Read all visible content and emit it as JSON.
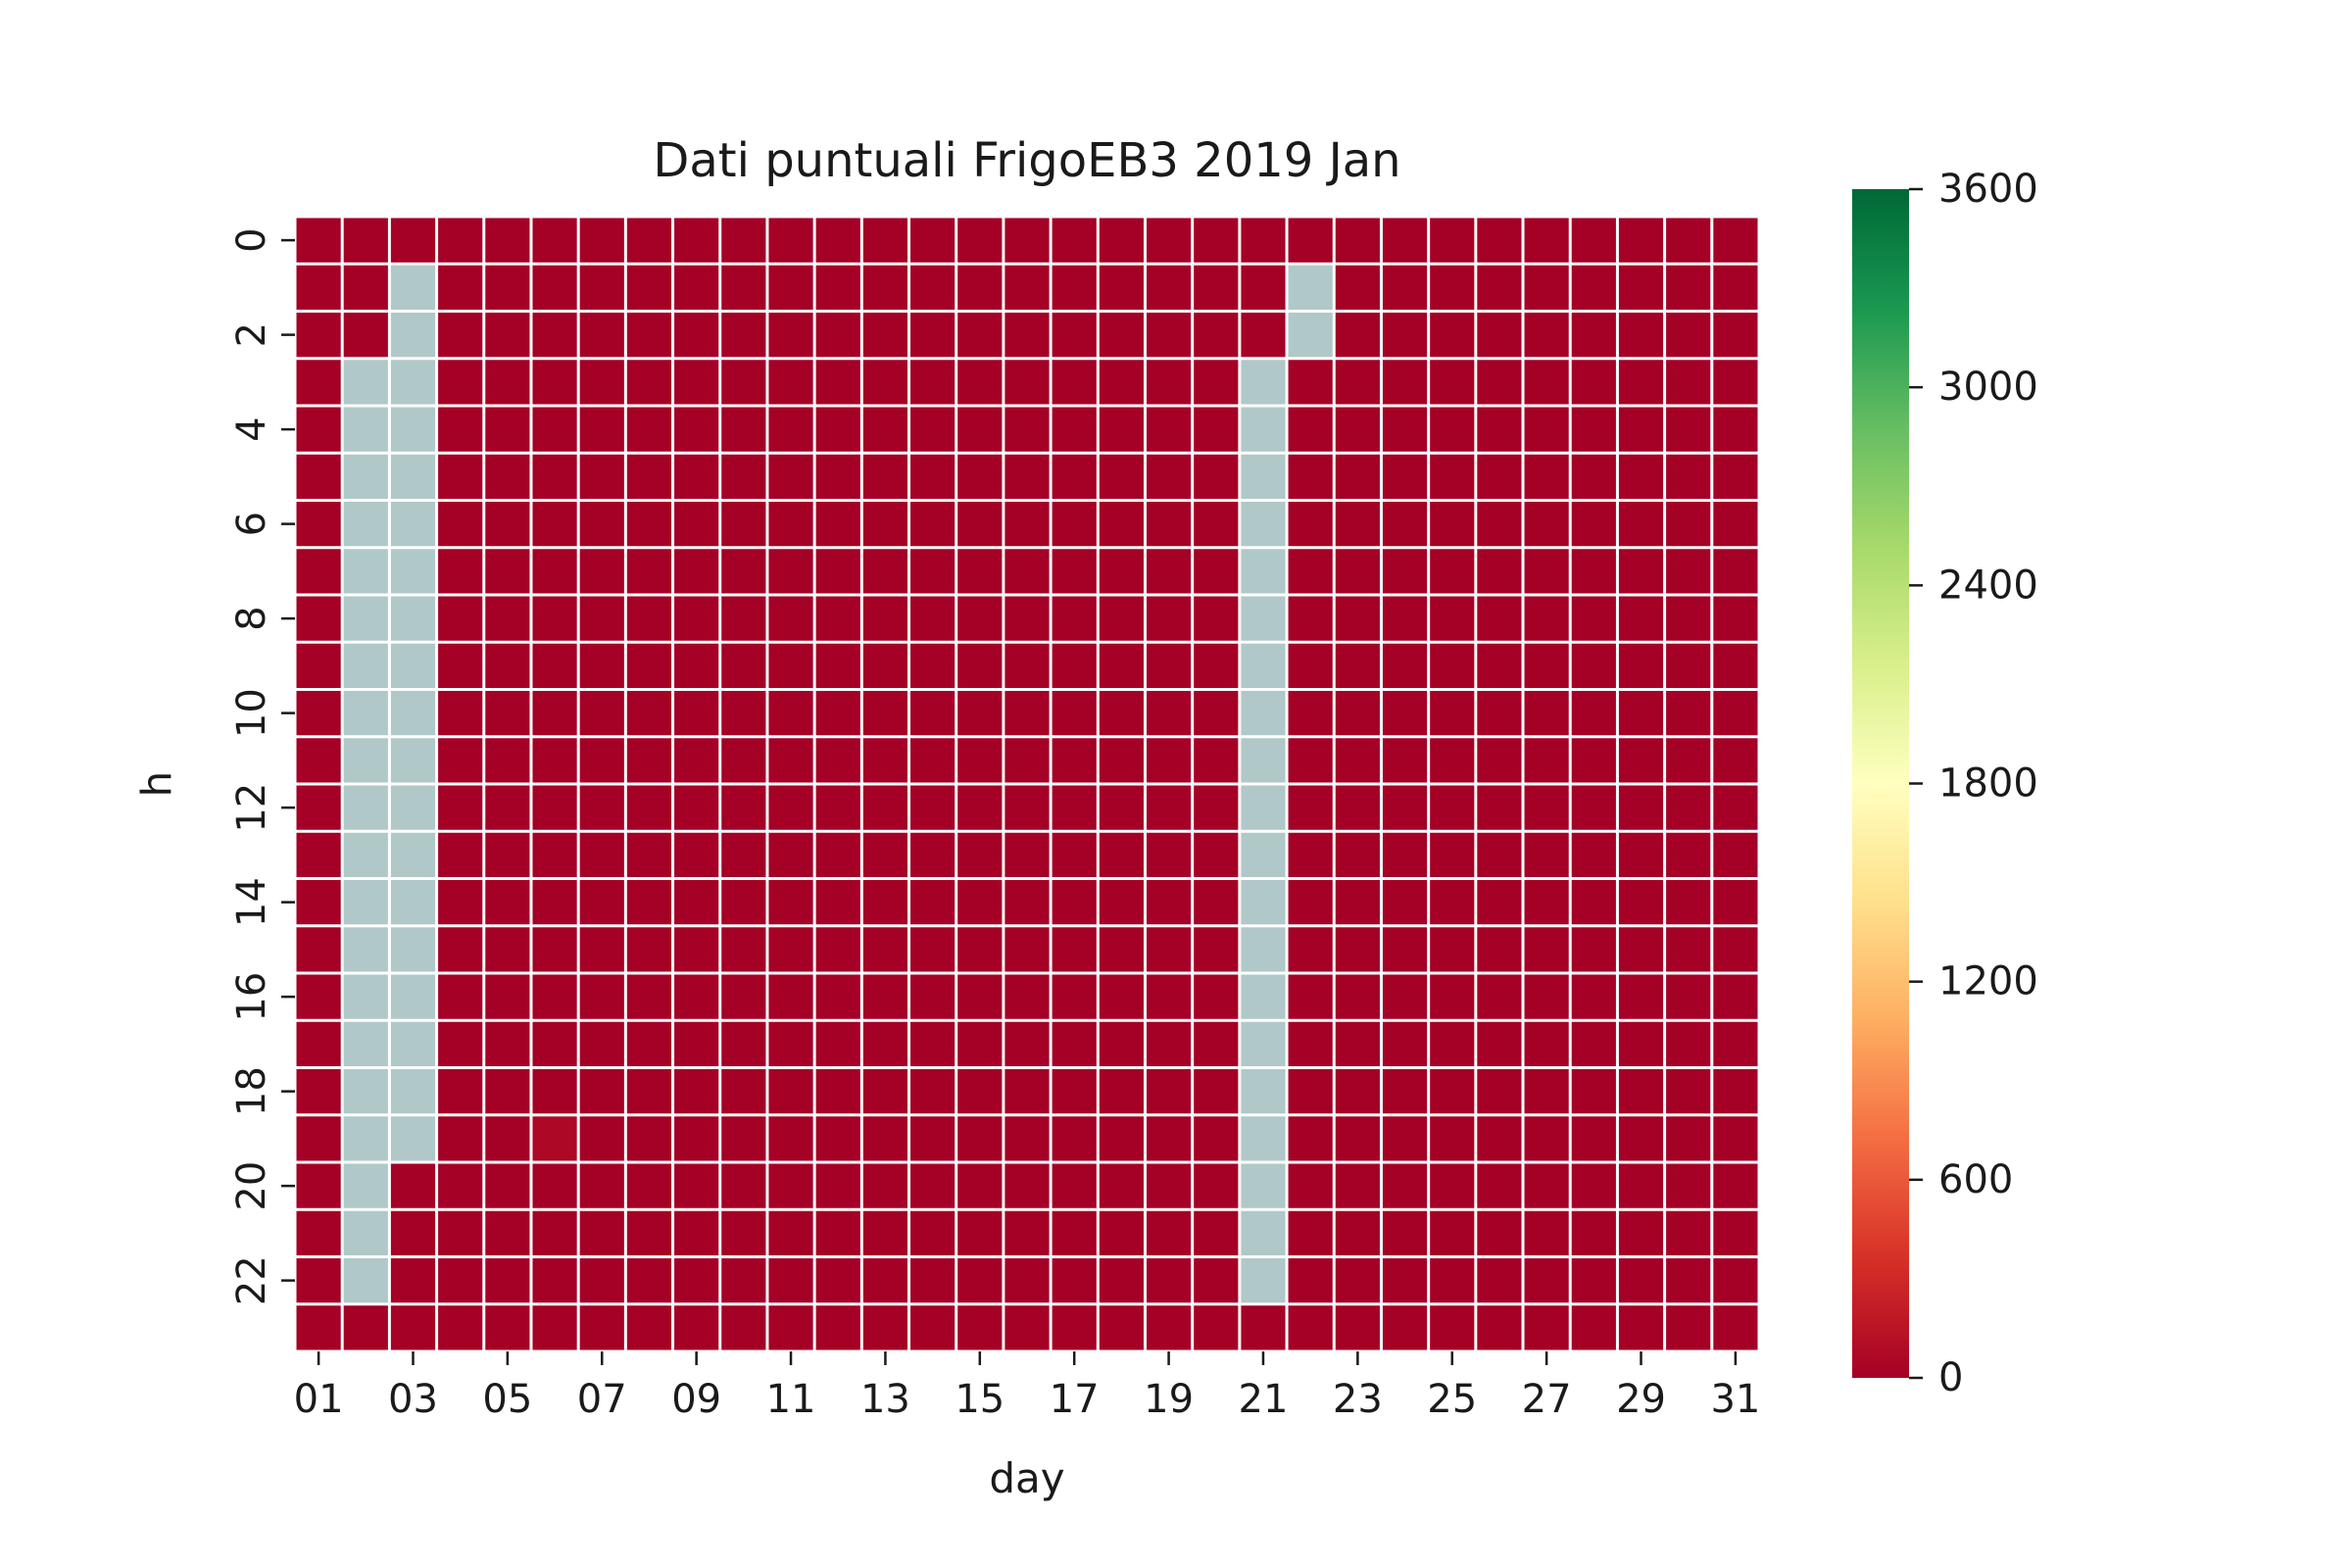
{
  "chart_data": {
    "type": "heatmap",
    "title": "Dati puntuali FrigoEB3 2019 Jan",
    "xlabel": "day",
    "ylabel": "h",
    "x_categories": [
      "01",
      "02",
      "03",
      "04",
      "05",
      "06",
      "07",
      "08",
      "09",
      "10",
      "11",
      "12",
      "13",
      "14",
      "15",
      "16",
      "17",
      "18",
      "19",
      "20",
      "21",
      "22",
      "23",
      "24",
      "25",
      "26",
      "27",
      "28",
      "29",
      "30",
      "31"
    ],
    "x_tick_labels": [
      "01",
      "03",
      "05",
      "07",
      "09",
      "11",
      "13",
      "15",
      "17",
      "19",
      "21",
      "23",
      "25",
      "27",
      "29",
      "31"
    ],
    "y_categories": [
      "0",
      "1",
      "2",
      "3",
      "4",
      "5",
      "6",
      "7",
      "8",
      "9",
      "10",
      "11",
      "12",
      "13",
      "14",
      "15",
      "16",
      "17",
      "18",
      "19",
      "20",
      "21",
      "22",
      "23"
    ],
    "y_tick_labels": [
      "0",
      "2",
      "4",
      "6",
      "8",
      "10",
      "12",
      "14",
      "16",
      "18",
      "20",
      "22"
    ],
    "default_value": 0,
    "exceptions": [
      {
        "day": "06",
        "hours": [
          19
        ],
        "value": 60
      }
    ],
    "missing": [
      {
        "day": "02",
        "hours": [
          3,
          4,
          5,
          6,
          7,
          8,
          9,
          10,
          11,
          12,
          13,
          14,
          15,
          16,
          17,
          18,
          19,
          20,
          21,
          22
        ]
      },
      {
        "day": "03",
        "hours": [
          1,
          2,
          3,
          4,
          5,
          6,
          7,
          8,
          9,
          10,
          11,
          12,
          13,
          14,
          15,
          16,
          17,
          18,
          19
        ]
      },
      {
        "day": "21",
        "hours": [
          3,
          4,
          5,
          6,
          7,
          8,
          9,
          10,
          11,
          12,
          13,
          14,
          15,
          16,
          17,
          18,
          19,
          20,
          21,
          22
        ]
      },
      {
        "day": "22",
        "hours": [
          1,
          2
        ]
      }
    ],
    "colorbar": {
      "min": 0,
      "max": 3600,
      "ticks": [
        "0",
        "600",
        "1200",
        "1800",
        "2400",
        "3000",
        "3600"
      ],
      "colormap": "RdYlGn",
      "stops": [
        "#a50026",
        "#d73027",
        "#f46d43",
        "#fdae61",
        "#fee08b",
        "#ffffbf",
        "#d9ef8b",
        "#a6d96a",
        "#66bd63",
        "#1a9850",
        "#006837"
      ]
    },
    "missing_color": "#b0c8c8",
    "gridline_color": "#ffffff"
  }
}
